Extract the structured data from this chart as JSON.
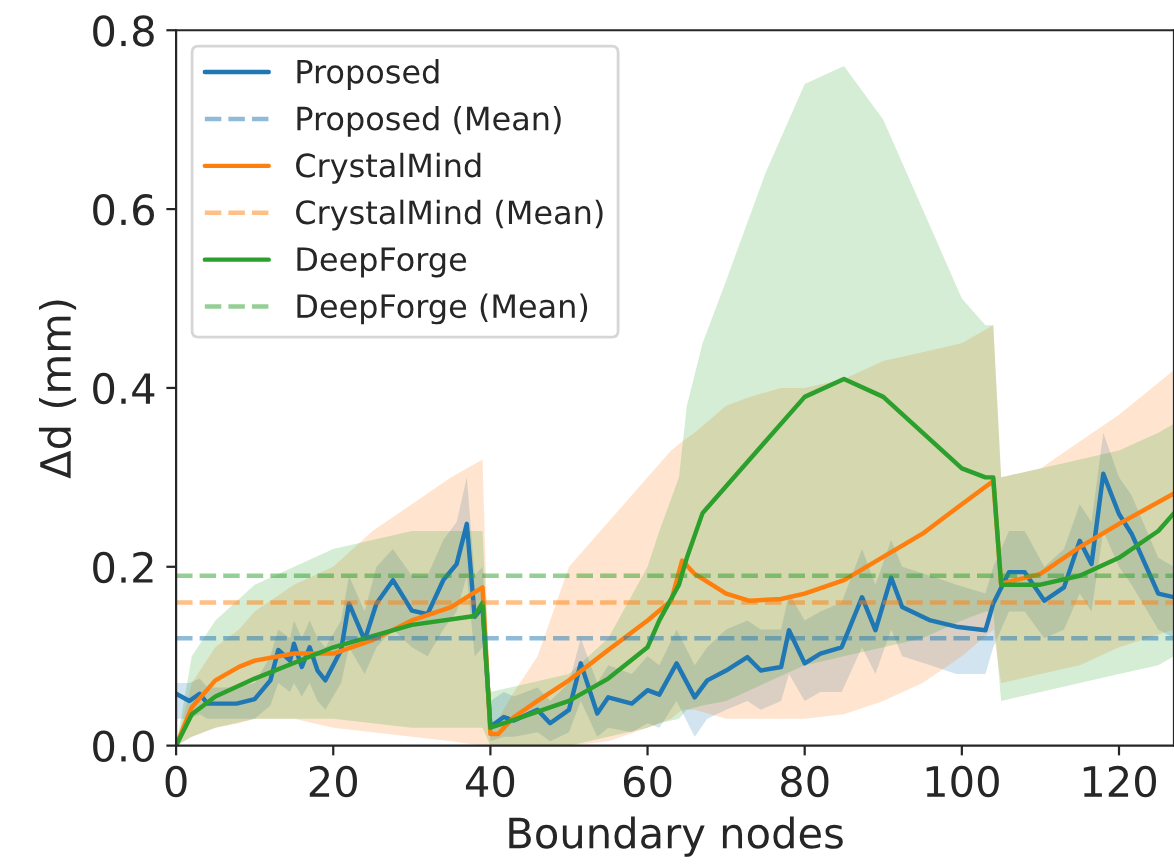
{
  "chart_data": {
    "type": "line",
    "xlabel": "Boundary nodes",
    "ylabel": "Δd (mm)",
    "xlim": [
      0,
      127
    ],
    "ylim": [
      0,
      0.8
    ],
    "xticks": [
      0,
      20,
      40,
      60,
      80,
      100,
      120
    ],
    "yticks": [
      {
        "value": 0,
        "label": "0.0"
      },
      0.2,
      0.4,
      0.6,
      0.8
    ],
    "legend": "top left",
    "grid": false,
    "line_style": "solid",
    "series": [
      {
        "name": "Proposed",
        "color": "#1f77b4",
        "x": [
          0,
          1.7,
          3,
          4,
          7.7,
          10,
          12,
          13,
          14.5,
          15,
          16,
          17,
          18,
          19,
          21,
          22,
          24,
          25.5,
          27.6,
          30,
          32,
          34,
          35.7,
          37,
          38,
          39,
          40,
          41.7,
          43,
          46,
          47.6,
          50,
          51.5,
          53.6,
          55,
          58,
          60,
          61.5,
          63.7,
          66,
          67.6,
          70,
          72.7,
          74.4,
          77,
          78,
          80,
          82,
          84.7,
          87.3,
          89,
          91,
          92.4,
          96,
          99.3,
          103,
          104,
          106,
          108,
          110.5,
          113,
          115,
          116.5,
          118,
          120,
          121.6,
          125,
          127
        ],
        "values": [
          0.058,
          0.05,
          0.058,
          0.047,
          0.047,
          0.052,
          0.073,
          0.107,
          0.095,
          0.114,
          0.088,
          0.11,
          0.084,
          0.073,
          0.107,
          0.159,
          0.118,
          0.159,
          0.185,
          0.151,
          0.147,
          0.185,
          0.203,
          0.248,
          0.144,
          0.155,
          0.021,
          0.032,
          0.028,
          0.04,
          0.025,
          0.04,
          0.092,
          0.036,
          0.054,
          0.047,
          0.062,
          0.057,
          0.092,
          0.054,
          0.073,
          0.084,
          0.099,
          0.084,
          0.088,
          0.129,
          0.092,
          0.103,
          0.11,
          0.166,
          0.129,
          0.188,
          0.155,
          0.14,
          0.133,
          0.129,
          0.159,
          0.194,
          0.194,
          0.162,
          0.177,
          0.229,
          0.203,
          0.304,
          0.259,
          0.237,
          0.17,
          0.166
        ],
        "lower": [
          0.03,
          0.03,
          0.035,
          0.03,
          0.03,
          0.03,
          0.045,
          0.07,
          0.06,
          0.07,
          0.055,
          0.07,
          0.05,
          0.04,
          0.07,
          0.11,
          0.08,
          0.11,
          0.13,
          0.11,
          0.1,
          0.13,
          0.15,
          0.19,
          0.1,
          0.11,
          0.005,
          0.01,
          0.01,
          0.015,
          0.005,
          0.015,
          0.05,
          0.01,
          0.02,
          0.015,
          0.025,
          0.02,
          0.05,
          0.01,
          0.03,
          0.04,
          0.05,
          0.04,
          0.05,
          0.08,
          0.05,
          0.06,
          0.06,
          0.11,
          0.08,
          0.13,
          0.1,
          0.09,
          0.08,
          0.08,
          0.11,
          0.15,
          0.15,
          0.12,
          0.13,
          0.17,
          0.15,
          0.24,
          0.2,
          0.18,
          0.13,
          0.12
        ],
        "upper": [
          0.07,
          0.07,
          0.075,
          0.065,
          0.065,
          0.07,
          0.1,
          0.13,
          0.12,
          0.14,
          0.12,
          0.14,
          0.12,
          0.11,
          0.14,
          0.19,
          0.15,
          0.2,
          0.22,
          0.19,
          0.19,
          0.23,
          0.25,
          0.3,
          0.19,
          0.2,
          0.05,
          0.06,
          0.055,
          0.065,
          0.05,
          0.07,
          0.12,
          0.07,
          0.09,
          0.08,
          0.1,
          0.09,
          0.13,
          0.09,
          0.11,
          0.13,
          0.14,
          0.13,
          0.13,
          0.17,
          0.14,
          0.15,
          0.16,
          0.22,
          0.18,
          0.23,
          0.2,
          0.19,
          0.18,
          0.17,
          0.2,
          0.24,
          0.24,
          0.2,
          0.22,
          0.27,
          0.25,
          0.35,
          0.3,
          0.28,
          0.21,
          0.2
        ]
      },
      {
        "name": "CrystalMind",
        "color": "#ff7f0e",
        "x": [
          0,
          2,
          5,
          8,
          10,
          15,
          20,
          25,
          30,
          35,
          39,
          40,
          41,
          43,
          46,
          50,
          55,
          60,
          63,
          64.4,
          66,
          70,
          73,
          77,
          80,
          85,
          90,
          95,
          100,
          104,
          105,
          110,
          115,
          120,
          127
        ],
        "values": [
          0,
          0.043,
          0.073,
          0.088,
          0.095,
          0.103,
          0.103,
          0.118,
          0.14,
          0.155,
          0.177,
          0.013,
          0.013,
          0.032,
          0.05,
          0.073,
          0.107,
          0.14,
          0.162,
          0.207,
          0.192,
          0.17,
          0.162,
          0.164,
          0.17,
          0.185,
          0.211,
          0.237,
          0.27,
          0.296,
          0.181,
          0.192,
          0.222,
          0.248,
          0.282
        ],
        "lower": [
          0,
          0.01,
          0.02,
          0.025,
          0.03,
          0.03,
          0.02,
          0.015,
          0.01,
          0.005,
          0,
          0,
          0,
          0,
          0,
          0,
          0.005,
          0.02,
          0.03,
          0.04,
          0.04,
          0.03,
          0.03,
          0.03,
          0.03,
          0.035,
          0.05,
          0.07,
          0.1,
          0.13,
          0.07,
          0.08,
          0.09,
          0.11,
          0.13
        ],
        "upper": [
          0,
          0.07,
          0.11,
          0.13,
          0.15,
          0.18,
          0.2,
          0.24,
          0.27,
          0.3,
          0.32,
          0.02,
          0.03,
          0.06,
          0.1,
          0.2,
          0.25,
          0.3,
          0.33,
          0.34,
          0.35,
          0.38,
          0.39,
          0.4,
          0.4,
          0.41,
          0.43,
          0.44,
          0.45,
          0.47,
          0.3,
          0.31,
          0.34,
          0.37,
          0.42
        ]
      },
      {
        "name": "DeepForge",
        "color": "#2ca02c",
        "x": [
          0,
          2,
          5,
          10,
          20,
          30,
          38,
          39,
          40,
          45,
          50,
          55,
          60,
          61.5,
          64,
          65,
          67,
          70,
          75,
          80,
          85,
          90,
          95,
          100,
          103,
          104,
          105,
          110,
          115,
          120,
          125,
          127
        ],
        "values": [
          0,
          0.035,
          0.055,
          0.075,
          0.11,
          0.135,
          0.145,
          0.16,
          0.02,
          0.035,
          0.05,
          0.075,
          0.11,
          0.14,
          0.18,
          0.21,
          0.26,
          0.29,
          0.34,
          0.39,
          0.41,
          0.39,
          0.35,
          0.31,
          0.3,
          0.3,
          0.18,
          0.18,
          0.19,
          0.21,
          0.24,
          0.26
        ],
        "lower": [
          0,
          0.01,
          0.02,
          0.03,
          0.03,
          0.02,
          0.02,
          0.02,
          0,
          0,
          0,
          0.01,
          0.02,
          0.025,
          0.03,
          0.04,
          0.045,
          0.05,
          0.07,
          0.09,
          0.1,
          0.11,
          0.12,
          0.14,
          0.15,
          0.15,
          0.05,
          0.06,
          0.07,
          0.08,
          0.09,
          0.1
        ],
        "upper": [
          0,
          0.1,
          0.14,
          0.18,
          0.22,
          0.24,
          0.24,
          0.24,
          0.06,
          0.07,
          0.08,
          0.12,
          0.2,
          0.24,
          0.3,
          0.38,
          0.45,
          0.52,
          0.64,
          0.74,
          0.76,
          0.7,
          0.6,
          0.5,
          0.47,
          0.47,
          0.3,
          0.31,
          0.32,
          0.33,
          0.35,
          0.36
        ]
      }
    ],
    "ref_lines": [
      {
        "axis": "y",
        "value": 0.12,
        "label": "Proposed (Mean)",
        "color": "#1f77b4",
        "line_style": "dashed"
      },
      {
        "axis": "y",
        "value": 0.16,
        "label": "CrystalMind (Mean)",
        "color": "#ff7f0e",
        "line_style": "dashed"
      },
      {
        "axis": "y",
        "value": 0.19,
        "label": "DeepForge (Mean)",
        "color": "#2ca02c",
        "line_style": "dashed"
      }
    ]
  }
}
